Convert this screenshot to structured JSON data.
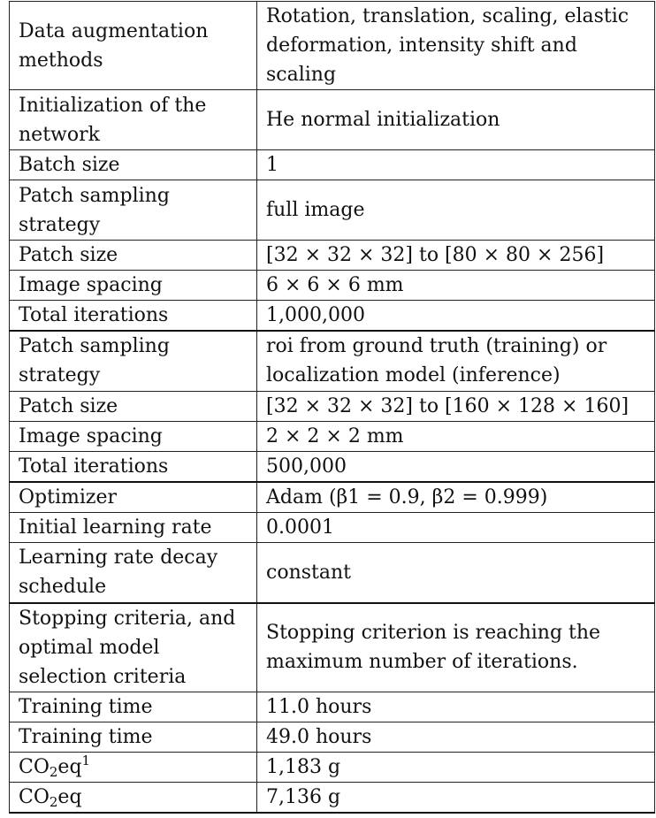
{
  "table": {
    "rows": [
      {
        "label": "Data augmentation methods",
        "value": "Rotation, translation, scaling, elastic deformation, intensity shift and scaling"
      },
      {
        "label": "Initialization of the network",
        "value": "He normal initialization"
      },
      {
        "label": "Batch size",
        "value": "1"
      },
      {
        "label": "Patch sampling strategy",
        "value": "full image"
      },
      {
        "label": "Patch size",
        "value": "[32 × 32 × 32] to [80 × 80 × 256]"
      },
      {
        "label": "Image spacing",
        "value": "6 × 6 × 6 mm"
      },
      {
        "label": "Total iterations",
        "value": "1,000,000"
      },
      {
        "label": "Patch sampling strategy",
        "value": "roi from ground truth (training) or localization model (inference)"
      },
      {
        "label": "Patch size",
        "value": "[32 × 32 × 32] to [160 × 128 × 160]"
      },
      {
        "label": "Image spacing",
        "value": "2 × 2 × 2 mm"
      },
      {
        "label": "Total iterations",
        "value": "500,000"
      },
      {
        "label": "Optimizer",
        "value": "Adam (β1 = 0.9, β2 = 0.999)"
      },
      {
        "label": "Initial learning rate",
        "value": "0.0001"
      },
      {
        "label": "Learning rate decay schedule",
        "value": "constant"
      },
      {
        "label": "Stopping criteria, and optimal model selection criteria",
        "value": "Stopping criterion is reaching the maximum number of iterations."
      },
      {
        "label": "Training time",
        "value": "11.0 hours"
      },
      {
        "label": "Training time",
        "value": "49.0 hours"
      },
      {
        "label": "CO2eq1",
        "label_parts": {
          "base": "CO",
          "sub": "2",
          "rest": "eq",
          "sup": "1"
        },
        "value": "1,183 g"
      },
      {
        "label": "CO2eq",
        "label_parts": {
          "base": "CO",
          "sub": "2",
          "rest": "eq"
        },
        "value": "7,136 g"
      }
    ]
  }
}
